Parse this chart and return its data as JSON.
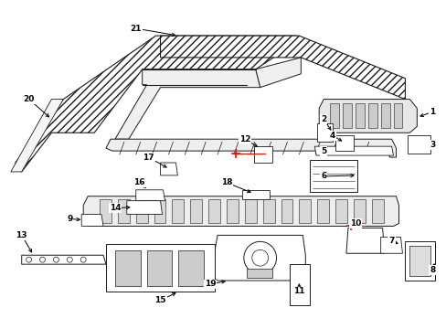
{
  "background_color": "#ffffff",
  "line_color": "#1a1a1a",
  "red_color": "#ff0000",
  "fig_width": 4.89,
  "fig_height": 3.6,
  "dpi": 100,
  "hatch_color": "#555555",
  "part_fill": "#ffffff",
  "shade_fill": "#e0e0e0"
}
